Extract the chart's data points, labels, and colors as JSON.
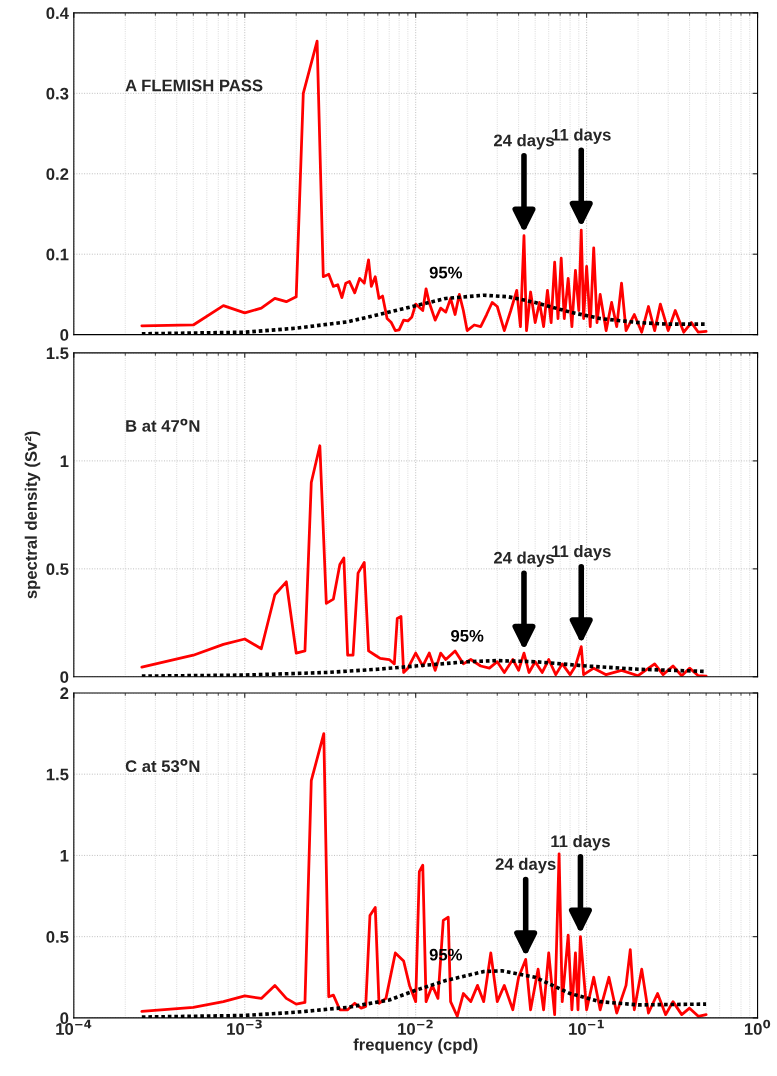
{
  "chart_data": [
    {
      "type": "line",
      "annotations": [
        "A FLEMISH PASS",
        {
          "text": "24 days",
          "x": 0.043,
          "y": 0.123
        },
        {
          "text": "11 days",
          "x": 0.093,
          "y": 0.13
        }
      ],
      "xlim": [
        0.0001,
        1
      ],
      "xticks": [
        {
          "value": 0.0001,
          "label": null
        },
        {
          "value": 0.001,
          "label": null
        },
        {
          "value": 0.01,
          "label": null
        },
        {
          "value": 0.1,
          "label": null
        },
        {
          "value": 1,
          "label": null
        }
      ],
      "ylim": [
        0,
        0.4
      ],
      "yticks": [
        0,
        0.1,
        0.2,
        0.3,
        0.4
      ],
      "log": "x",
      "grid": true,
      "tick_labels": "y",
      "series": [
        {
          "color": "#ff0000",
          "line_style": "solid",
          "x": [
            0.00025,
            0.0005,
            0.00075,
            0.001,
            0.00125,
            0.0015,
            0.00175,
            0.002,
            0.0022,
            0.00265,
            0.00288,
            0.0031,
            0.0033,
            0.0035,
            0.0037,
            0.0039,
            0.0041,
            0.0044,
            0.0047,
            0.005,
            0.0053,
            0.0055,
            0.0058,
            0.0061,
            0.0064,
            0.0068,
            0.0072,
            0.0076,
            0.008,
            0.0085,
            0.009,
            0.0095,
            0.01,
            0.011,
            0.0115,
            0.012,
            0.013,
            0.014,
            0.015,
            0.016,
            0.017,
            0.018,
            0.019,
            0.02,
            0.022,
            0.024,
            0.026,
            0.028,
            0.03,
            0.033,
            0.036,
            0.039,
            0.041,
            0.043,
            0.0445,
            0.047,
            0.05,
            0.053,
            0.056,
            0.059,
            0.062,
            0.065,
            0.068,
            0.071,
            0.074,
            0.078,
            0.082,
            0.086,
            0.09,
            0.093,
            0.096,
            0.1,
            0.105,
            0.11,
            0.115,
            0.12,
            0.13,
            0.14,
            0.15,
            0.16,
            0.17,
            0.19,
            0.21,
            0.23,
            0.25,
            0.27,
            0.3,
            0.33,
            0.37,
            0.41,
            0.45,
            0.5
          ],
          "values": [
            0.011,
            0.012,
            0.036,
            0.027,
            0.033,
            0.045,
            0.041,
            0.047,
            0.3,
            0.365,
            0.072,
            0.075,
            0.06,
            0.062,
            0.046,
            0.064,
            0.066,
            0.052,
            0.07,
            0.064,
            0.093,
            0.06,
            0.072,
            0.045,
            0.048,
            0.02,
            0.015,
            0.005,
            0.006,
            0.018,
            0.017,
            0.022,
            0.038,
            0.03,
            0.057,
            0.04,
            0.018,
            0.033,
            0.028,
            0.045,
            0.025,
            0.05,
            0.03,
            0.005,
            0.012,
            0.01,
            0.025,
            0.04,
            0.035,
            0.005,
            0.03,
            0.055,
            0.01,
            0.123,
            0.005,
            0.053,
            0.015,
            0.04,
            0.01,
            0.055,
            0.015,
            0.09,
            0.02,
            0.095,
            0.02,
            0.07,
            0.01,
            0.08,
            0.03,
            0.13,
            0.02,
            0.085,
            0.01,
            0.108,
            0.015,
            0.05,
            0.005,
            0.04,
            0.01,
            0.064,
            0.005,
            0.025,
            0.003,
            0.035,
            0.005,
            0.038,
            0.005,
            0.03,
            0.003,
            0.015,
            0.003,
            0.004
          ]
        },
        {
          "name": "95%",
          "color": "#000000",
          "line_style": "dotted",
          "x": [
            0.00025,
            0.001,
            0.002,
            0.004,
            0.007,
            0.01,
            0.015,
            0.025,
            0.035,
            0.05,
            0.08,
            0.12,
            0.2,
            0.3,
            0.5
          ],
          "values": [
            0.001,
            0.003,
            0.008,
            0.016,
            0.028,
            0.036,
            0.045,
            0.049,
            0.047,
            0.04,
            0.028,
            0.02,
            0.015,
            0.013,
            0.013
          ]
        }
      ]
    },
    {
      "type": "line",
      "ylabel": "spectral density (Sv²)",
      "annotations": [
        "B at 47$^{o}$N",
        {
          "text": "24 days",
          "x": 0.043,
          "y": 0.11
        },
        {
          "text": "11 days",
          "x": 0.093,
          "y": 0.14
        }
      ],
      "xlim": [
        0.0001,
        1
      ],
      "xticks": [
        {
          "value": 0.0001,
          "label": null
        },
        {
          "value": 0.001,
          "label": null
        },
        {
          "value": 0.01,
          "label": null
        },
        {
          "value": 0.1,
          "label": null
        },
        {
          "value": 1,
          "label": null
        }
      ],
      "ylim": [
        0,
        1.5
      ],
      "yticks": [
        0,
        0.5,
        1,
        1.5
      ],
      "log": "x",
      "grid": true,
      "tick_labels": "y",
      "series": [
        {
          "color": "#ff0000",
          "line_style": "solid",
          "x": [
            0.00025,
            0.0005,
            0.00075,
            0.001,
            0.00125,
            0.0015,
            0.00175,
            0.002,
            0.00225,
            0.00245,
            0.00275,
            0.003,
            0.0033,
            0.0036,
            0.0038,
            0.004,
            0.0043,
            0.0046,
            0.005,
            0.0053,
            0.0058,
            0.0062,
            0.007,
            0.0075,
            0.0078,
            0.0082,
            0.0085,
            0.009,
            0.01,
            0.011,
            0.012,
            0.013,
            0.014,
            0.015,
            0.017,
            0.019,
            0.021,
            0.024,
            0.027,
            0.03,
            0.033,
            0.037,
            0.04,
            0.043,
            0.046,
            0.05,
            0.055,
            0.06,
            0.066,
            0.072,
            0.08,
            0.086,
            0.093,
            0.096,
            0.11,
            0.13,
            0.16,
            0.2,
            0.25,
            0.28,
            0.32,
            0.36,
            0.4,
            0.45,
            0.5
          ],
          "values": [
            0.045,
            0.1,
            0.15,
            0.175,
            0.13,
            0.38,
            0.44,
            0.11,
            0.12,
            0.9,
            1.07,
            0.34,
            0.36,
            0.52,
            0.55,
            0.1,
            0.1,
            0.48,
            0.53,
            0.12,
            0.1,
            0.085,
            0.08,
            0.06,
            0.27,
            0.28,
            0.02,
            0.04,
            0.11,
            0.05,
            0.11,
            0.03,
            0.11,
            0.08,
            0.12,
            0.06,
            0.08,
            0.05,
            0.04,
            0.07,
            0.02,
            0.08,
            0.03,
            0.11,
            0.02,
            0.07,
            0.02,
            0.08,
            0.01,
            0.06,
            0.01,
            0.05,
            0.14,
            0.01,
            0.04,
            0.01,
            0.03,
            0.005,
            0.06,
            0.01,
            0.05,
            0.005,
            0.04,
            0.005,
            0.003
          ]
        },
        {
          "name": "95%",
          "color": "#000000",
          "line_style": "dotted",
          "x": [
            0.00025,
            0.001,
            0.003,
            0.006,
            0.01,
            0.02,
            0.03,
            0.05,
            0.1,
            0.2,
            0.5
          ],
          "values": [
            0.003,
            0.008,
            0.02,
            0.035,
            0.05,
            0.07,
            0.075,
            0.07,
            0.05,
            0.035,
            0.025
          ]
        }
      ]
    },
    {
      "type": "line",
      "xlabel": "frequency (cpd)",
      "annotations": [
        "C at 53$^{o}$N",
        {
          "text": "24 days",
          "x": 0.044,
          "y": 0.36
        },
        {
          "text": "11 days",
          "x": 0.092,
          "y": 0.5
        }
      ],
      "xlim": [
        0.0001,
        1
      ],
      "xticks": [
        {
          "value": 0.0001,
          "label": "10$^{−4}$"
        },
        {
          "value": 0.001,
          "label": "10$^{−3}$"
        },
        {
          "value": 0.01,
          "label": "10$^{−2}$"
        },
        {
          "value": 0.1,
          "label": "10$^{−1}$"
        },
        {
          "value": 1,
          "label": "10$^{0}$"
        }
      ],
      "ylim": [
        0,
        2
      ],
      "yticks": [
        0,
        0.5,
        1,
        1.5,
        2
      ],
      "log": "x",
      "grid": true,
      "series": [
        {
          "color": "#ff0000",
          "line_style": "solid",
          "x": [
            0.00025,
            0.0005,
            0.00075,
            0.001,
            0.00125,
            0.0015,
            0.00175,
            0.002,
            0.00225,
            0.00245,
            0.0029,
            0.0031,
            0.0033,
            0.0036,
            0.004,
            0.0044,
            0.0048,
            0.0051,
            0.0054,
            0.0058,
            0.0061,
            0.0067,
            0.0076,
            0.0085,
            0.0092,
            0.01,
            0.0105,
            0.011,
            0.0115,
            0.0125,
            0.0135,
            0.0145,
            0.0155,
            0.016,
            0.0175,
            0.019,
            0.021,
            0.023,
            0.025,
            0.0275,
            0.03,
            0.033,
            0.037,
            0.04,
            0.044,
            0.047,
            0.052,
            0.056,
            0.06,
            0.065,
            0.069,
            0.072,
            0.078,
            0.082,
            0.086,
            0.089,
            0.092,
            0.1,
            0.11,
            0.12,
            0.135,
            0.15,
            0.17,
            0.18,
            0.19,
            0.21,
            0.23,
            0.26,
            0.29,
            0.32,
            0.36,
            0.4,
            0.45,
            0.5
          ],
          "values": [
            0.04,
            0.065,
            0.1,
            0.135,
            0.12,
            0.2,
            0.12,
            0.085,
            0.095,
            1.46,
            1.75,
            0.13,
            0.14,
            0.05,
            0.05,
            0.09,
            0.06,
            0.07,
            0.63,
            0.68,
            0.09,
            0.12,
            0.4,
            0.35,
            0.2,
            0.1,
            0.9,
            0.94,
            0.1,
            0.2,
            0.12,
            0.6,
            0.62,
            0.1,
            0.01,
            0.15,
            0.1,
            0.2,
            0.1,
            0.4,
            0.1,
            0.2,
            0.05,
            0.25,
            0.36,
            0.05,
            0.3,
            0.05,
            0.4,
            0.02,
            1.01,
            0.1,
            0.51,
            0.05,
            0.4,
            0.05,
            0.5,
            0.05,
            0.25,
            0.05,
            0.25,
            0.03,
            0.2,
            0.42,
            0.05,
            0.3,
            0.03,
            0.15,
            0.02,
            0.1,
            0.02,
            0.06,
            0.01,
            0.02
          ]
        },
        {
          "name": "95%",
          "color": "#000000",
          "line_style": "dotted",
          "x": [
            0.00025,
            0.001,
            0.002,
            0.004,
            0.007,
            0.01,
            0.015,
            0.025,
            0.032,
            0.05,
            0.08,
            0.12,
            0.2,
            0.5
          ],
          "values": [
            0.005,
            0.015,
            0.035,
            0.065,
            0.11,
            0.17,
            0.23,
            0.285,
            0.29,
            0.25,
            0.15,
            0.1,
            0.08,
            0.085
          ]
        }
      ]
    }
  ]
}
